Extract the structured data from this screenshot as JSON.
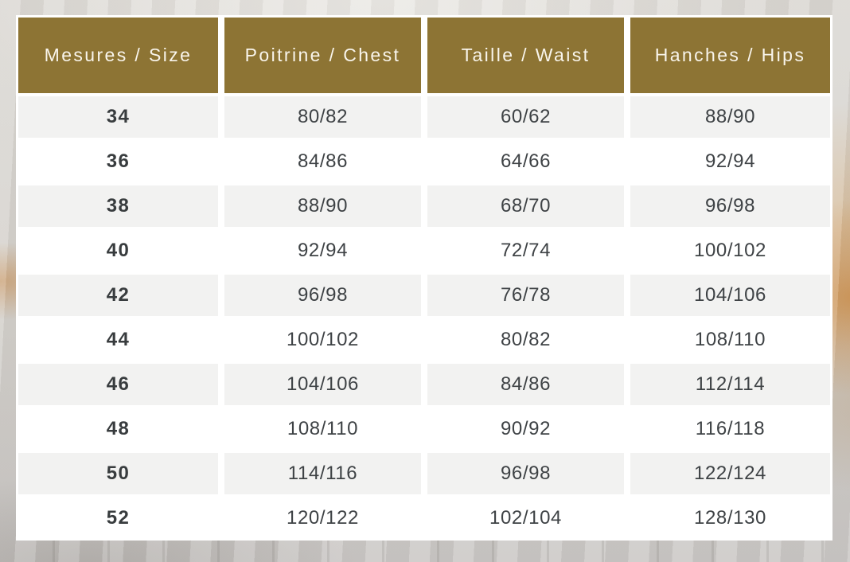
{
  "table": {
    "headers": [
      "Mesures / Size",
      "Poitrine / Chest",
      "Taille / Waist",
      "Hanches / Hips"
    ],
    "rows": [
      {
        "size": "34",
        "chest": "80/82",
        "waist": "60/62",
        "hips": "88/90"
      },
      {
        "size": "36",
        "chest": "84/86",
        "waist": "64/66",
        "hips": "92/94"
      },
      {
        "size": "38",
        "chest": "88/90",
        "waist": "68/70",
        "hips": "96/98"
      },
      {
        "size": "40",
        "chest": "92/94",
        "waist": "72/74",
        "hips": "100/102"
      },
      {
        "size": "42",
        "chest": "96/98",
        "waist": "76/78",
        "hips": "104/106"
      },
      {
        "size": "44",
        "chest": "100/102",
        "waist": "80/82",
        "hips": "108/110"
      },
      {
        "size": "46",
        "chest": "104/106",
        "waist": "84/86",
        "hips": "112/114"
      },
      {
        "size": "48",
        "chest": "108/110",
        "waist": "90/92",
        "hips": "116/118"
      },
      {
        "size": "50",
        "chest": "114/116",
        "waist": "96/98",
        "hips": "122/124"
      },
      {
        "size": "52",
        "chest": "120/122",
        "waist": "102/104",
        "hips": "128/130"
      }
    ]
  },
  "colors": {
    "header_bg": "#8d7434",
    "header_text": "#f9f5ec",
    "row_stripe_bg": "#f2f2f1",
    "row_bg": "#ffffff",
    "cell_text": "#3e4245",
    "table_border": "#ffffff",
    "backdrop_gray": "#d3d0cb",
    "backdrop_orange": "#ce8d46"
  }
}
